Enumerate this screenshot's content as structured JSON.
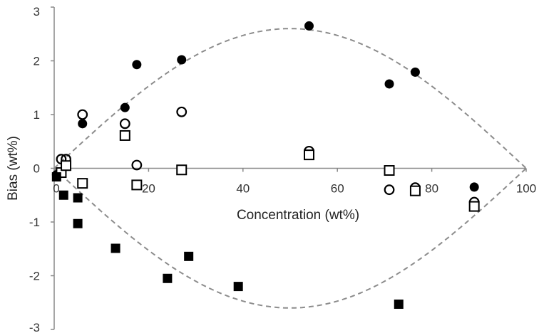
{
  "chart_data": {
    "type": "scatter",
    "title": "",
    "xlabel": "Concentration (wt%)",
    "ylabel": "Bias (wt%)",
    "xlim": [
      0,
      100
    ],
    "ylim": [
      -3,
      3
    ],
    "x_ticks": [
      0,
      20,
      40,
      60,
      80,
      100
    ],
    "x_tick_labels": [
      "0",
      "20",
      "40",
      "60",
      "80",
      "100"
    ],
    "y_ticks": [
      -3,
      -2,
      -1,
      0,
      1,
      2,
      3
    ],
    "y_tick_labels": [
      "-3",
      "-2",
      "-1",
      "0",
      "1",
      "2",
      "3"
    ],
    "grid": false,
    "legend": "none",
    "colors": {
      "marker": "#000000",
      "curve": "#8c8c8c",
      "axis": "#888888"
    },
    "series": [
      {
        "marker": "filled-circle",
        "points": [
          {
            "x": 0.5,
            "y": -0.12
          },
          {
            "x": 6,
            "y": 0.83
          },
          {
            "x": 15,
            "y": 1.13
          },
          {
            "x": 17.5,
            "y": 1.93
          },
          {
            "x": 27,
            "y": 2.02
          },
          {
            "x": 54,
            "y": 2.65
          },
          {
            "x": 71,
            "y": 1.57
          },
          {
            "x": 76.5,
            "y": 1.79
          },
          {
            "x": 89,
            "y": -0.35
          }
        ]
      },
      {
        "marker": "open-circle",
        "points": [
          {
            "x": 1.5,
            "y": 0.17
          },
          {
            "x": 2.5,
            "y": 0.17
          },
          {
            "x": 6,
            "y": 1.0
          },
          {
            "x": 15,
            "y": 0.83
          },
          {
            "x": 17.5,
            "y": 0.06
          },
          {
            "x": 27,
            "y": 1.05
          },
          {
            "x": 54,
            "y": 0.32
          },
          {
            "x": 71,
            "y": -0.4
          },
          {
            "x": 76.5,
            "y": -0.36
          },
          {
            "x": 89,
            "y": -0.63
          }
        ]
      },
      {
        "marker": "open-square",
        "points": [
          {
            "x": 1.5,
            "y": -0.08
          },
          {
            "x": 2.5,
            "y": 0.05
          },
          {
            "x": 6,
            "y": -0.28
          },
          {
            "x": 15,
            "y": 0.61
          },
          {
            "x": 17.5,
            "y": -0.31
          },
          {
            "x": 27,
            "y": -0.03
          },
          {
            "x": 54,
            "y": 0.25
          },
          {
            "x": 71,
            "y": -0.04
          },
          {
            "x": 76.5,
            "y": -0.42
          },
          {
            "x": 89,
            "y": -0.71
          }
        ]
      },
      {
        "marker": "filled-square",
        "points": [
          {
            "x": 0.5,
            "y": -0.16
          },
          {
            "x": 2,
            "y": -0.5
          },
          {
            "x": 5,
            "y": -0.55
          },
          {
            "x": 5,
            "y": -1.03
          },
          {
            "x": 13,
            "y": -1.49
          },
          {
            "x": 24,
            "y": -2.05
          },
          {
            "x": 28.5,
            "y": -1.64
          },
          {
            "x": 39,
            "y": -2.2
          },
          {
            "x": 73,
            "y": -2.53
          }
        ]
      }
    ],
    "curves": [
      {
        "style": "dashed",
        "formula": "y = 2.6 * sin(pi * x / 100)"
      },
      {
        "style": "dashed",
        "formula": "y = -2.6 * sin(pi * x / 100)"
      }
    ]
  }
}
